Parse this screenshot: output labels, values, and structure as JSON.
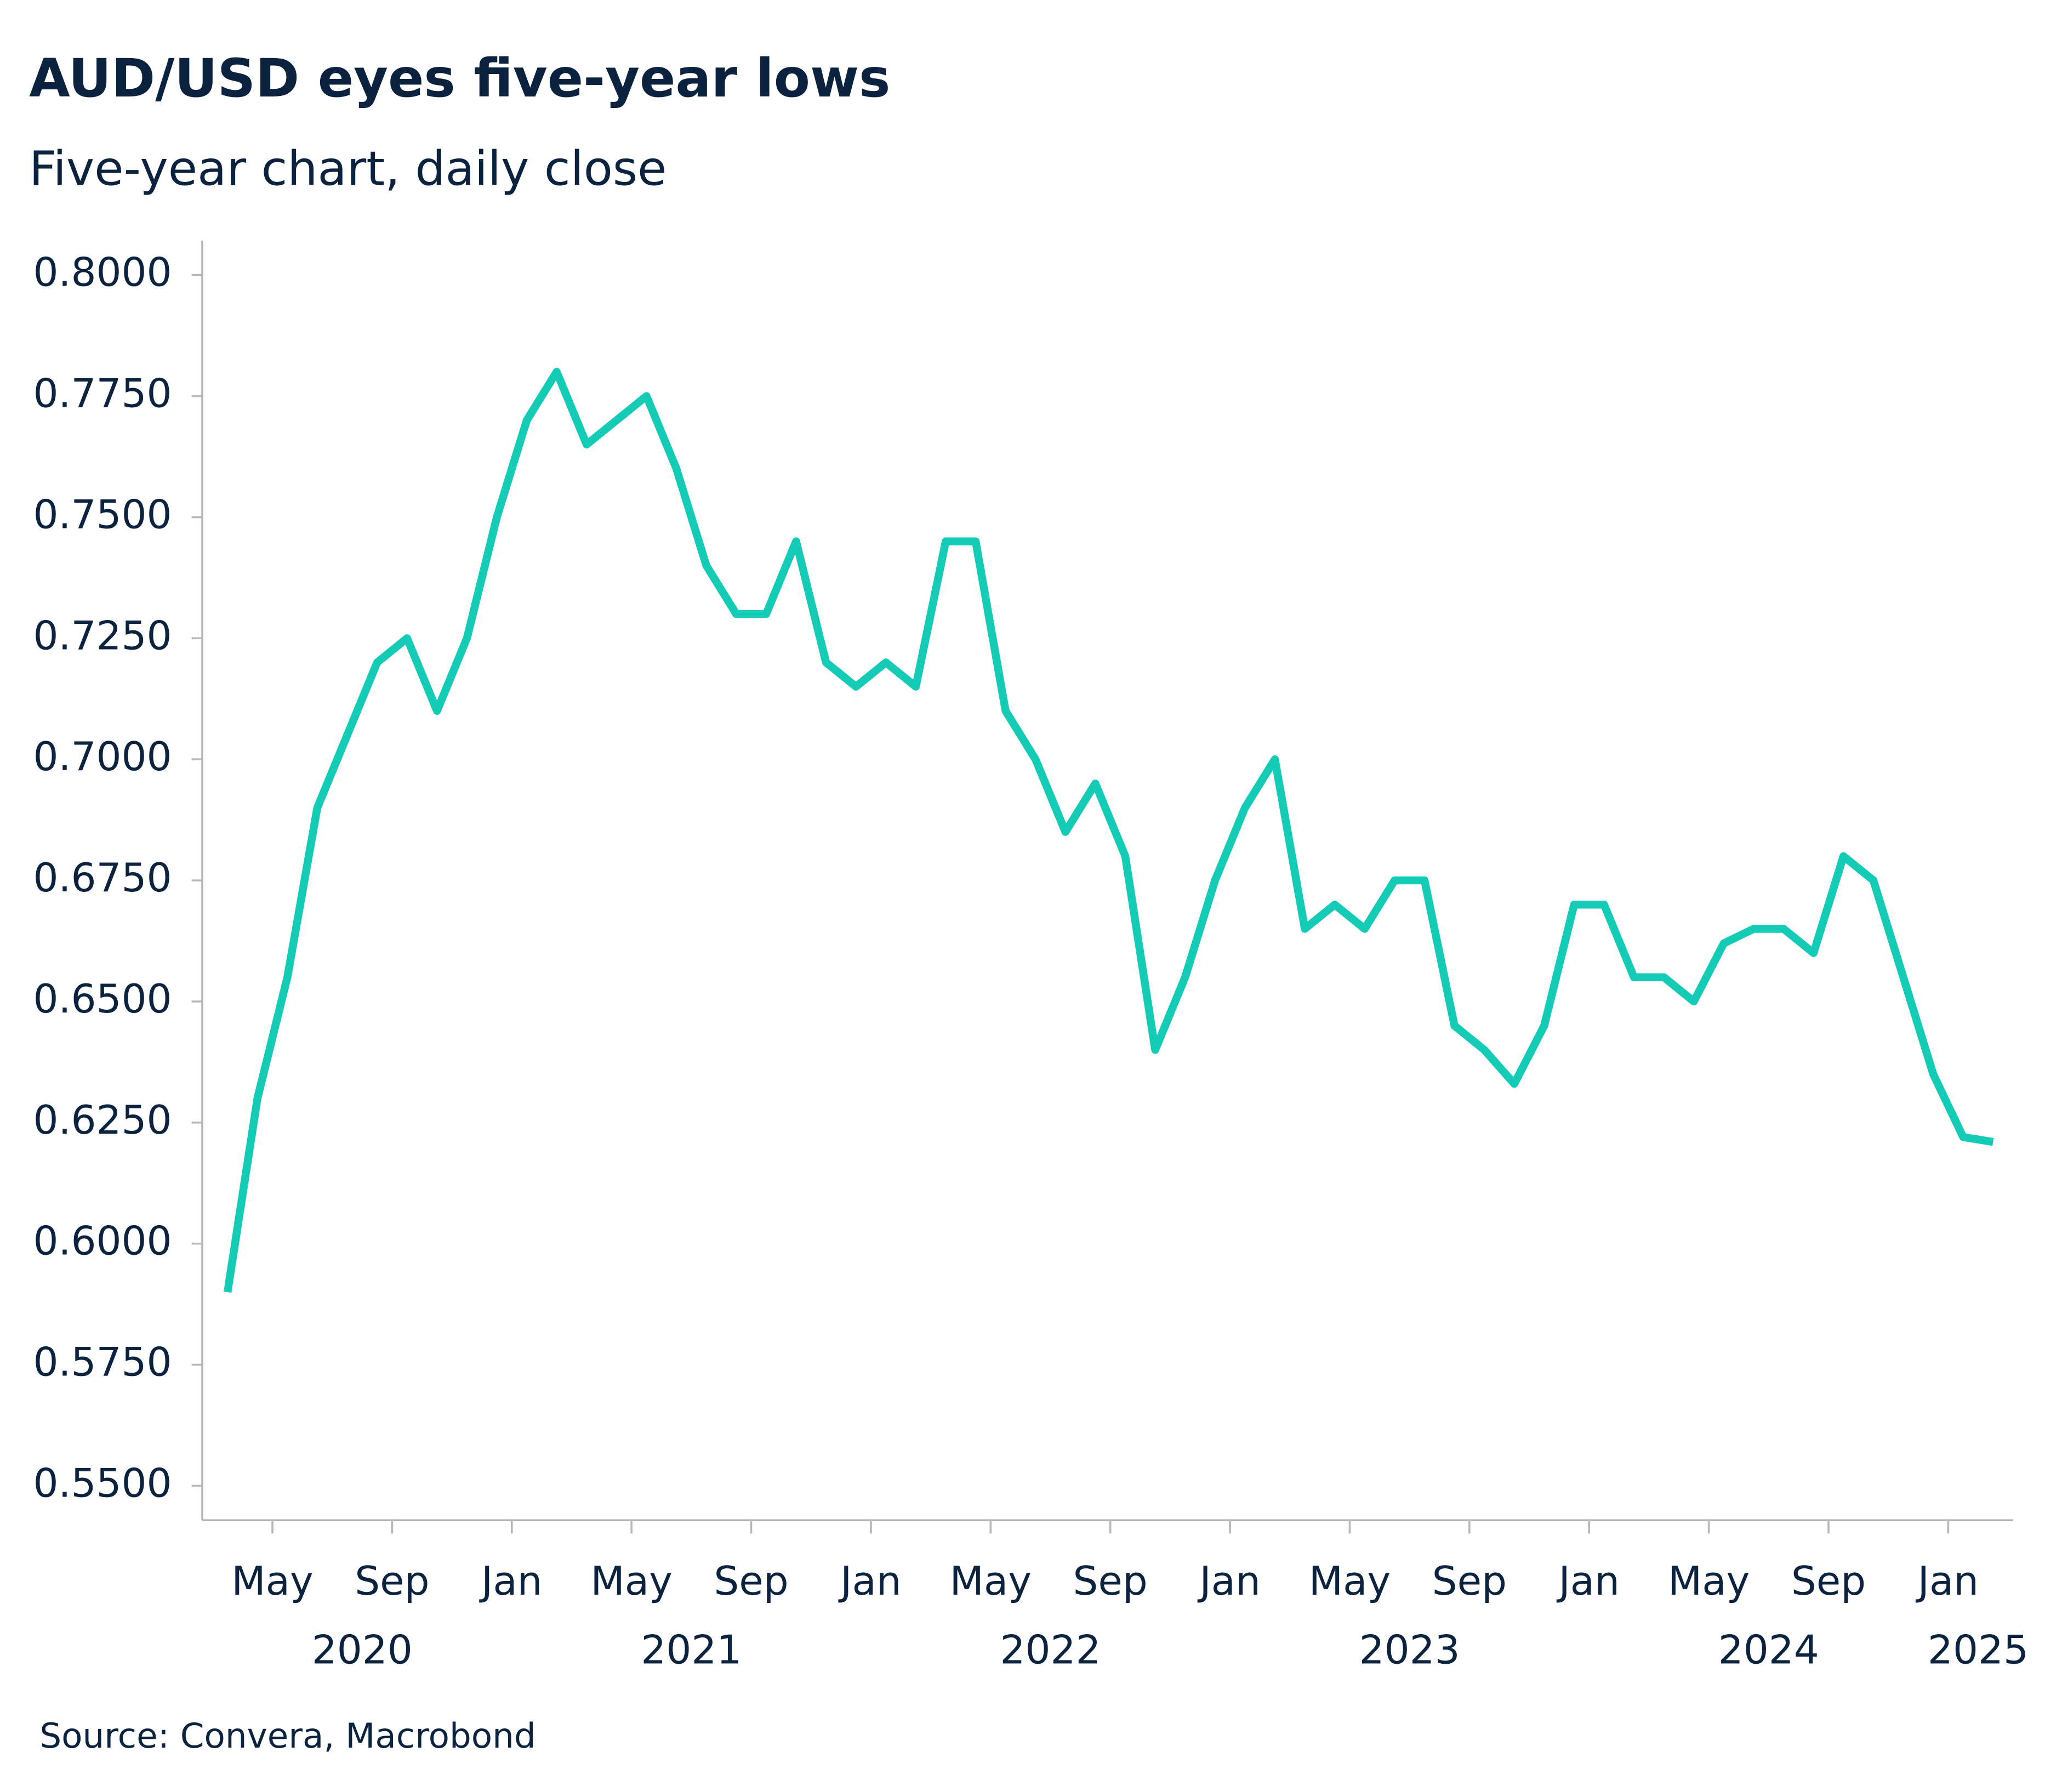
{
  "chart_data": {
    "type": "line",
    "title": "AUD/USD eyes five-year lows",
    "subtitle": "Five-year chart, daily close",
    "source": "Source: Convera, Macrobond",
    "x": [
      "2020-03",
      "2020-04",
      "2020-05",
      "2020-06",
      "2020-07",
      "2020-08",
      "2020-09",
      "2020-10",
      "2020-11",
      "2020-12",
      "2021-01",
      "2021-02",
      "2021-03",
      "2021-04",
      "2021-05",
      "2021-06",
      "2021-07",
      "2021-08",
      "2021-09",
      "2021-10",
      "2021-11",
      "2021-12",
      "2022-01",
      "2022-02",
      "2022-03",
      "2022-04",
      "2022-05",
      "2022-06",
      "2022-07",
      "2022-08",
      "2022-09",
      "2022-10",
      "2022-11",
      "2022-12",
      "2023-01",
      "2023-02",
      "2023-03",
      "2023-04",
      "2023-05",
      "2023-06",
      "2023-07",
      "2023-08",
      "2023-09",
      "2023-10",
      "2023-11",
      "2023-12",
      "2024-01",
      "2024-02",
      "2024-03",
      "2024-04",
      "2024-05",
      "2024-06",
      "2024-07",
      "2024-08",
      "2024-09",
      "2024-10",
      "2024-11",
      "2024-12",
      "2025-01",
      "2025-02"
    ],
    "series": [
      {
        "name": "AUD/USD",
        "color": "#14cbb5",
        "values": [
          0.59,
          0.63,
          0.655,
          0.69,
          0.705,
          0.72,
          0.725,
          0.71,
          0.725,
          0.75,
          0.77,
          0.78,
          0.765,
          0.77,
          0.775,
          0.76,
          0.74,
          0.73,
          0.73,
          0.745,
          0.72,
          0.715,
          0.72,
          0.715,
          0.745,
          0.745,
          0.71,
          0.7,
          0.685,
          0.695,
          0.68,
          0.64,
          0.655,
          0.675,
          0.69,
          0.7,
          0.665,
          0.67,
          0.665,
          0.675,
          0.675,
          0.645,
          0.64,
          0.633,
          0.645,
          0.67,
          0.67,
          0.655,
          0.655,
          0.65,
          0.662,
          0.665,
          0.665,
          0.66,
          0.68,
          0.675,
          0.655,
          0.635,
          0.622,
          0.621
        ]
      }
    ],
    "ylim": [
      0.5429,
      0.8071
    ],
    "yticks": [
      {
        "value": 0.55,
        "label": "0.5500"
      },
      {
        "value": 0.575,
        "label": "0.5750"
      },
      {
        "value": 0.6,
        "label": "0.6000"
      },
      {
        "value": 0.625,
        "label": "0.6250"
      },
      {
        "value": 0.65,
        "label": "0.6500"
      },
      {
        "value": 0.675,
        "label": "0.6750"
      },
      {
        "value": 0.7,
        "label": "0.7000"
      },
      {
        "value": 0.725,
        "label": "0.7250"
      },
      {
        "value": 0.75,
        "label": "0.7500"
      },
      {
        "value": 0.775,
        "label": "0.7750"
      },
      {
        "value": 0.8,
        "label": "0.8000"
      }
    ],
    "xticks": [
      {
        "value": "2020-05",
        "label": "May"
      },
      {
        "value": "2020-09",
        "label": "Sep"
      },
      {
        "value": "2021-01",
        "label": "Jan"
      },
      {
        "value": "2021-05",
        "label": "May"
      },
      {
        "value": "2021-09",
        "label": "Sep"
      },
      {
        "value": "2022-01",
        "label": "Jan"
      },
      {
        "value": "2022-05",
        "label": "May"
      },
      {
        "value": "2022-09",
        "label": "Sep"
      },
      {
        "value": "2023-01",
        "label": "Jan"
      },
      {
        "value": "2023-05",
        "label": "May"
      },
      {
        "value": "2023-09",
        "label": "Sep"
      },
      {
        "value": "2024-01",
        "label": "Jan"
      },
      {
        "value": "2024-05",
        "label": "May"
      },
      {
        "value": "2024-09",
        "label": "Sep"
      },
      {
        "value": "2025-01",
        "label": "Jan"
      }
    ],
    "x_year_labels": [
      "2020",
      "2021",
      "2022",
      "2023",
      "2024",
      "2025"
    ],
    "grid": false
  }
}
